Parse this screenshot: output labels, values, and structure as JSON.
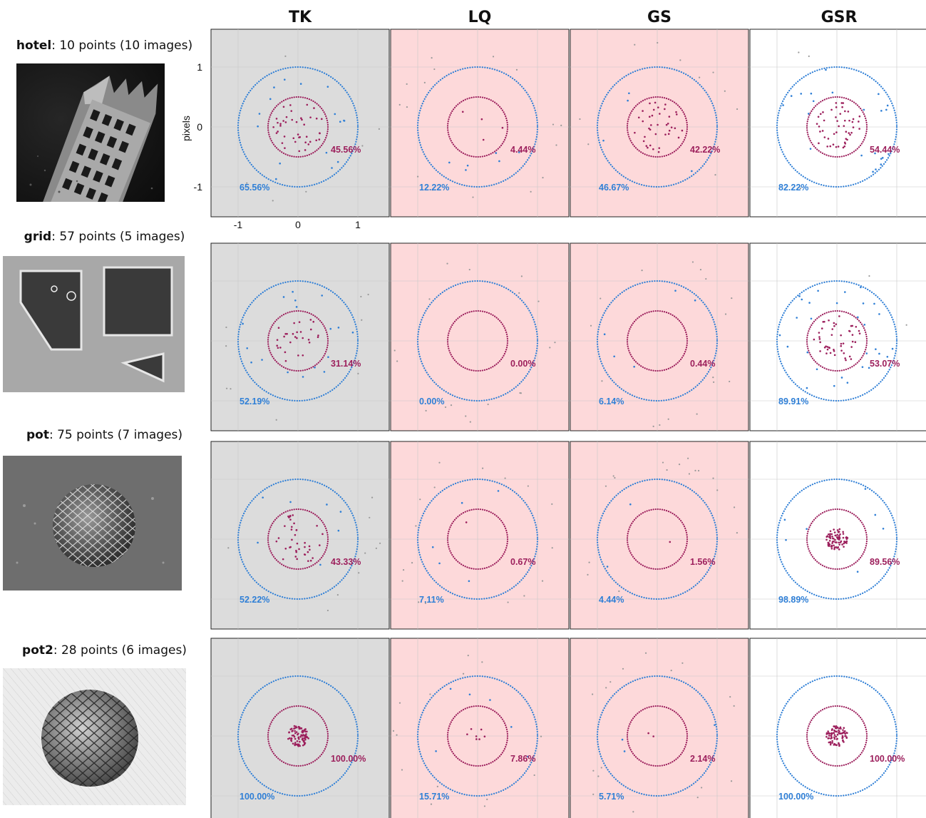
{
  "methods": [
    "TK",
    "LQ",
    "GS",
    "GSR"
  ],
  "y_axis_label": "pixels",
  "x_ticks": [
    "-1",
    "0",
    "1"
  ],
  "y_ticks": [
    "1",
    "0",
    "-1"
  ],
  "colors": {
    "inner_circle": "#9c1f5c",
    "outer_circle": "#2f7fd6",
    "outlier": "#999999",
    "panel_gray": "#dcdcdc",
    "panel_pink": "#fdd9da",
    "panel_white": "#ffffff"
  },
  "rows": [
    {
      "name": "hotel",
      "summary": ": 10 points (10 images)",
      "image": "hotel-thumbnail"
    },
    {
      "name": "grid",
      "summary": ": 57 points (5 images)",
      "image": "grid-thumbnail"
    },
    {
      "name": "pot",
      "summary": ": 75 points (7 images)",
      "image": "pot-thumbnail"
    },
    {
      "name": "pot2",
      "summary": ": 28 points (6 images)",
      "image": "pot2-thumbnail"
    }
  ],
  "chart_data": {
    "type": "scatter",
    "description_axes": {
      "xlim": [
        -1.5,
        1.5
      ],
      "ylim": [
        -1.5,
        1.5
      ],
      "grid": true,
      "inner_radius": 0.5,
      "outer_radius": 1.0
    },
    "panels": [
      {
        "dataset": "hotel",
        "method": "TK",
        "background": "gray",
        "inner_pct": "45.56%",
        "outer_pct": "65.56%"
      },
      {
        "dataset": "hotel",
        "method": "LQ",
        "background": "pink",
        "inner_pct": "4.44%",
        "outer_pct": "12.22%"
      },
      {
        "dataset": "hotel",
        "method": "GS",
        "background": "pink",
        "inner_pct": "42.22%",
        "outer_pct": "46.67%"
      },
      {
        "dataset": "hotel",
        "method": "GSR",
        "background": "white",
        "inner_pct": "54.44%",
        "outer_pct": "82.22%"
      },
      {
        "dataset": "grid",
        "method": "TK",
        "background": "gray",
        "inner_pct": "31.14%",
        "outer_pct": "52.19%"
      },
      {
        "dataset": "grid",
        "method": "LQ",
        "background": "pink",
        "inner_pct": "0.00%",
        "outer_pct": "0.00%"
      },
      {
        "dataset": "grid",
        "method": "GS",
        "background": "pink",
        "inner_pct": "0.44%",
        "outer_pct": "6.14%"
      },
      {
        "dataset": "grid",
        "method": "GSR",
        "background": "white",
        "inner_pct": "53.07%",
        "outer_pct": "89.91%"
      },
      {
        "dataset": "pot",
        "method": "TK",
        "background": "gray",
        "inner_pct": "43.33%",
        "outer_pct": "52.22%"
      },
      {
        "dataset": "pot",
        "method": "LQ",
        "background": "pink",
        "inner_pct": "0.67%",
        "outer_pct": "7.11%"
      },
      {
        "dataset": "pot",
        "method": "GS",
        "background": "pink",
        "inner_pct": "1.56%",
        "outer_pct": "4.44%"
      },
      {
        "dataset": "pot",
        "method": "GSR",
        "background": "white",
        "inner_pct": "89.56%",
        "outer_pct": "98.89%"
      },
      {
        "dataset": "pot2",
        "method": "TK",
        "background": "gray",
        "inner_pct": "100.00%",
        "outer_pct": "100.00%"
      },
      {
        "dataset": "pot2",
        "method": "LQ",
        "background": "pink",
        "inner_pct": "7.86%",
        "outer_pct": "15.71%"
      },
      {
        "dataset": "pot2",
        "method": "GS",
        "background": "pink",
        "inner_pct": "2.14%",
        "outer_pct": "5.71%"
      },
      {
        "dataset": "pot2",
        "method": "GSR",
        "background": "white",
        "inner_pct": "100.00%",
        "outer_pct": "100.00%"
      }
    ]
  }
}
